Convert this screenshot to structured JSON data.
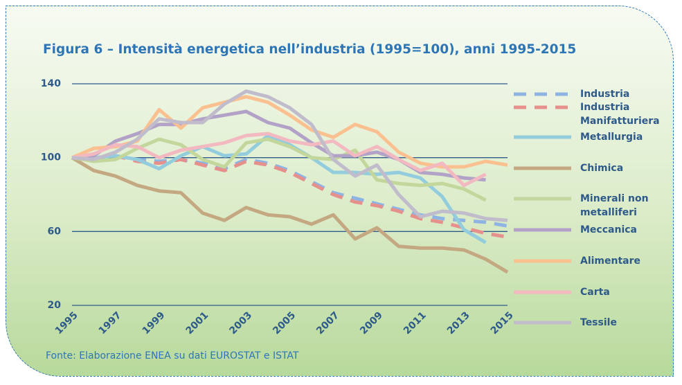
{
  "chart_data": {
    "type": "line",
    "title": "Figura 6 – Intensità energetica nell’industria (1995=100), anni 1995-2015",
    "source": "Fonte: Elaborazione ENEA su dati EUROSTAT e ISTAT",
    "x": [
      1995,
      1996,
      1997,
      1998,
      1999,
      2000,
      2001,
      2002,
      2003,
      2004,
      2005,
      2006,
      2007,
      2008,
      2009,
      2010,
      2011,
      2012,
      2013,
      2014,
      2015
    ],
    "xlim": [
      1995,
      2015
    ],
    "xticks": [
      1995,
      1997,
      1999,
      2001,
      2003,
      2005,
      2007,
      2009,
      2011,
      2013,
      2015
    ],
    "ylim": [
      20,
      140
    ],
    "yticks": [
      20,
      60,
      100,
      140
    ],
    "grid": true,
    "legend": "right",
    "series": [
      {
        "name": "Industria",
        "color": "#8eb4e3",
        "dashed": true,
        "values": [
          100,
          99,
          101,
          99,
          98,
          99,
          97,
          94,
          99,
          97,
          93,
          87,
          81,
          78,
          75,
          72,
          69,
          67,
          66,
          65,
          63
        ]
      },
      {
        "name": "Industria Manifatturiera",
        "color": "#e6908c",
        "dashed": true,
        "values": [
          100,
          99,
          101,
          98,
          97,
          99,
          96,
          93,
          98,
          96,
          92,
          86,
          80,
          76,
          74,
          71,
          67,
          65,
          62,
          59,
          57
        ]
      },
      {
        "name": "Metallurgia",
        "color": "#93cddd",
        "values": [
          100,
          100,
          101,
          99,
          94,
          101,
          106,
          101,
          102,
          112,
          107,
          100,
          92,
          92,
          91,
          92,
          89,
          79,
          61,
          54,
          null
        ]
      },
      {
        "name": "Chimica",
        "color": "#c4a882",
        "values": [
          100,
          93,
          90,
          85,
          82,
          81,
          70,
          66,
          73,
          69,
          68,
          64,
          69,
          56,
          62,
          52,
          51,
          51,
          50,
          45,
          38
        ]
      },
      {
        "name": "Minerali non metalliferi",
        "color": "#c3d69b",
        "values": [
          100,
          98,
          99,
          105,
          110,
          107,
          99,
          95,
          108,
          110,
          106,
          100,
          99,
          104,
          88,
          86,
          85,
          86,
          83,
          77,
          null
        ]
      },
      {
        "name": "Meccanica",
        "color": "#b3a2c7",
        "values": [
          100,
          101,
          109,
          113,
          118,
          118,
          121,
          123,
          125,
          119,
          116,
          108,
          101,
          101,
          103,
          99,
          92,
          91,
          89,
          88,
          null
        ]
      },
      {
        "name": "Alimentare",
        "color": "#fac090",
        "values": [
          100,
          105,
          106,
          109,
          126,
          116,
          127,
          130,
          133,
          130,
          123,
          115,
          111,
          118,
          114,
          103,
          97,
          95,
          95,
          98,
          96
        ]
      },
      {
        "name": "Carta",
        "color": "#f2b9c0",
        "values": [
          100,
          102,
          107,
          106,
          100,
          104,
          106,
          108,
          112,
          113,
          109,
          107,
          109,
          101,
          106,
          99,
          93,
          97,
          85,
          91,
          null
        ]
      },
      {
        "name": "Tessile",
        "color": "#c0bccc",
        "values": [
          100,
          99,
          103,
          110,
          121,
          119,
          119,
          129,
          136,
          133,
          127,
          118,
          99,
          90,
          96,
          80,
          68,
          71,
          70,
          67,
          66
        ]
      }
    ]
  }
}
